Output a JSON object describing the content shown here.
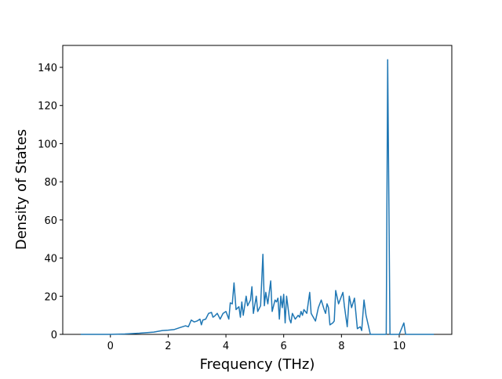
{
  "chart_data": {
    "type": "line",
    "x_label": "Frequency (THz)",
    "y_label": "Density of States",
    "x": [
      -1.03,
      0,
      0.5,
      1.0,
      1.5,
      1.8,
      2.0,
      2.2,
      2.4,
      2.6,
      2.7,
      2.8,
      2.9,
      3.0,
      3.1,
      3.15,
      3.2,
      3.3,
      3.4,
      3.5,
      3.55,
      3.6,
      3.7,
      3.8,
      3.9,
      4.0,
      4.1,
      4.15,
      4.22,
      4.28,
      4.35,
      4.45,
      4.5,
      4.55,
      4.6,
      4.7,
      4.75,
      4.85,
      4.9,
      4.95,
      5.05,
      5.1,
      5.2,
      5.28,
      5.33,
      5.38,
      5.45,
      5.55,
      5.6,
      5.65,
      5.7,
      5.75,
      5.8,
      5.85,
      5.9,
      5.95,
      6.0,
      6.05,
      6.1,
      6.2,
      6.25,
      6.3,
      6.4,
      6.5,
      6.55,
      6.6,
      6.65,
      6.7,
      6.8,
      6.9,
      6.95,
      7.1,
      7.2,
      7.3,
      7.4,
      7.45,
      7.5,
      7.55,
      7.6,
      7.7,
      7.75,
      7.8,
      7.9,
      7.95,
      8.05,
      8.1,
      8.2,
      8.27,
      8.35,
      8.45,
      8.5,
      8.55,
      8.65,
      8.7,
      8.78,
      8.85,
      9.0,
      9.55,
      9.6,
      9.68,
      10.0,
      10.16,
      10.22,
      11.2
    ],
    "series": [
      {
        "color": "#1f77b4",
        "values": [
          0,
          0,
          0.2,
          0.6,
          1.2,
          2,
          2.2,
          2.5,
          3.5,
          4.5,
          4,
          7.5,
          6.5,
          7,
          8,
          5,
          7.5,
          8,
          11,
          11.5,
          9,
          9.5,
          11,
          8,
          11,
          12,
          8,
          16.5,
          16,
          27,
          13,
          14.5,
          9,
          17,
          10,
          20,
          15,
          18,
          25,
          11,
          20,
          12,
          15,
          42,
          15,
          22,
          16,
          28,
          12,
          15,
          18,
          17,
          19,
          8,
          20,
          14,
          21,
          6,
          20,
          8,
          6,
          11,
          8,
          10,
          9,
          12,
          10,
          13,
          11,
          22,
          11,
          7,
          14,
          18,
          13,
          11,
          16,
          14,
          5,
          6,
          7,
          23,
          16,
          18,
          22,
          15,
          4,
          20,
          14,
          19,
          11,
          3,
          4,
          2,
          18,
          10,
          0,
          0,
          144,
          0,
          0,
          6,
          0,
          0
        ]
      }
    ],
    "xlim": [
      -1.65,
      11.82
    ],
    "ylim": [
      0,
      151.5
    ],
    "xticks": [
      0,
      2,
      4,
      6,
      8,
      10
    ],
    "yticks": [
      0,
      20,
      40,
      60,
      80,
      100,
      120,
      140
    ]
  }
}
